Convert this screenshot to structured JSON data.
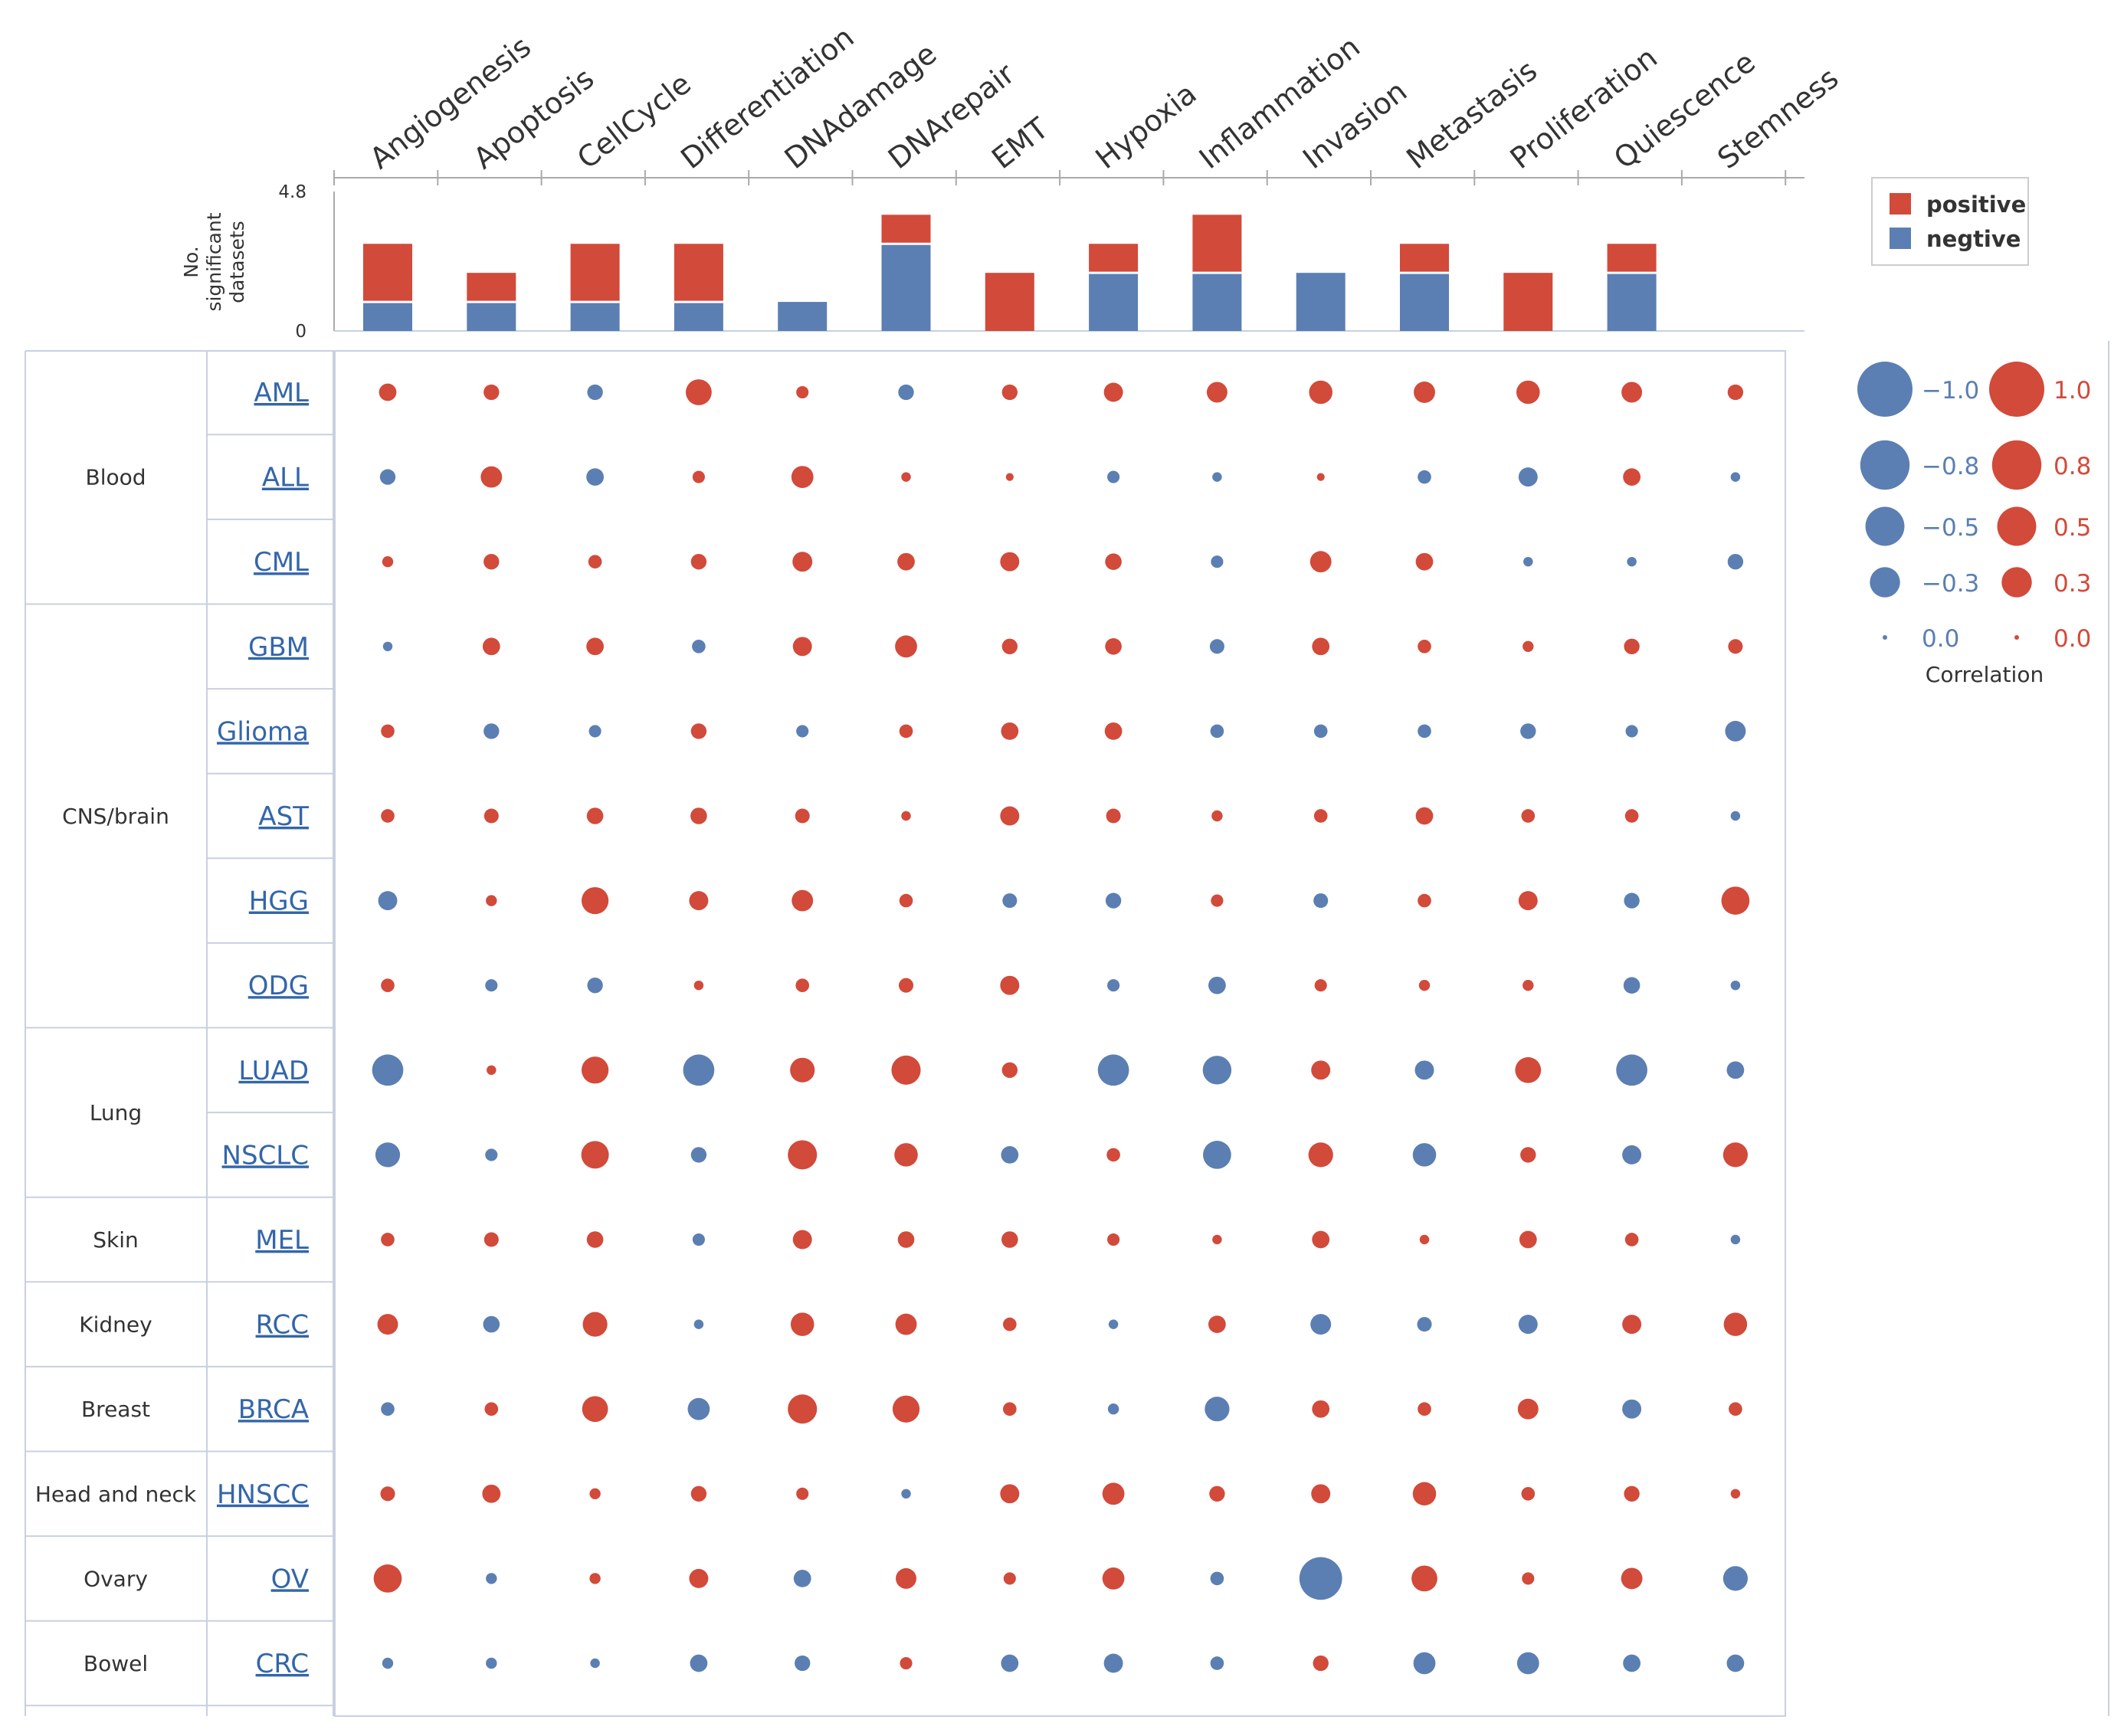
{
  "colors": {
    "positive": "#d24a3a",
    "negative": "#5b7fb2",
    "grid": "#c8d0e0",
    "axis": "#aaaaaa",
    "text": "#333333",
    "link": "#3366aa"
  },
  "chart_data": {
    "type": "bubble-heatmap",
    "categories": [
      "Angiogenesis",
      "Apoptosis",
      "CellCycle",
      "Differentiation",
      "DNAdamage",
      "DNArepair",
      "EMT",
      "Hypoxia",
      "Inflammation",
      "Invasion",
      "Metastasis",
      "Proliferation",
      "Quiescence",
      "Stemness"
    ],
    "bar": {
      "ylabel_line1": "No.",
      "ylabel_line2": "significant",
      "ylabel_line3": "datasets",
      "ymin_label": "0",
      "ymax_label": "4.8",
      "ylim": [
        0,
        4.8
      ],
      "series": [
        {
          "name": "positive",
          "values": [
            2,
            1,
            2,
            2,
            0,
            1,
            2,
            1,
            2,
            0,
            1,
            2,
            1,
            0
          ]
        },
        {
          "name": "negtive",
          "values": [
            1,
            1,
            1,
            1,
            1,
            3,
            0,
            2,
            2,
            2,
            2,
            0,
            2,
            0
          ]
        }
      ]
    },
    "legend": {
      "positive_label": "positive",
      "negative_label": "negtive",
      "placement": "top-right"
    },
    "size_legend": {
      "title": "Correlation",
      "negative_labels": [
        "−1.0",
        "−0.8",
        "−0.5",
        "−0.3",
        "0.0"
      ],
      "positive_labels": [
        "1.0",
        "0.8",
        "0.5",
        "0.3",
        "0.0"
      ],
      "values": [
        1.0,
        0.8,
        0.5,
        0.3,
        0.0
      ]
    },
    "groups": [
      {
        "name": "Blood",
        "rows": 3
      },
      {
        "name": "CNS/brain",
        "rows": 5
      },
      {
        "name": "Lung",
        "rows": 2
      },
      {
        "name": "Skin",
        "rows": 1
      },
      {
        "name": "Kidney",
        "rows": 1
      },
      {
        "name": "Breast",
        "rows": 1
      },
      {
        "name": "Head and neck",
        "rows": 1
      },
      {
        "name": "Ovary",
        "rows": 1
      },
      {
        "name": "Bowel",
        "rows": 1
      }
    ],
    "rows": [
      "AML",
      "ALL",
      "CML",
      "GBM",
      "Glioma",
      "AST",
      "HGG",
      "ODG",
      "LUAD",
      "NSCLC",
      "MEL",
      "RCC",
      "BRCA",
      "HNSCC",
      "OV",
      "CRC"
    ],
    "values": [
      [
        0.1,
        0.08,
        -0.08,
        0.22,
        0.05,
        -0.08,
        0.08,
        0.12,
        0.14,
        0.18,
        0.15,
        0.18,
        0.14,
        0.08
      ],
      [
        -0.08,
        0.15,
        -0.1,
        0.05,
        0.16,
        0.03,
        0.02,
        -0.05,
        -0.03,
        0.02,
        -0.06,
        -0.12,
        0.1,
        -0.03
      ],
      [
        0.04,
        0.08,
        0.06,
        0.08,
        0.13,
        0.1,
        0.12,
        0.09,
        -0.05,
        0.15,
        0.1,
        -0.03,
        -0.03,
        -0.08
      ],
      [
        -0.03,
        0.1,
        0.1,
        -0.06,
        0.12,
        0.16,
        0.08,
        0.09,
        -0.07,
        0.1,
        0.06,
        0.04,
        0.08,
        0.07
      ],
      [
        0.06,
        -0.08,
        -0.05,
        0.08,
        -0.05,
        0.06,
        0.1,
        0.1,
        -0.06,
        -0.06,
        -0.06,
        -0.08,
        -0.05,
        -0.14
      ],
      [
        0.06,
        0.07,
        0.09,
        0.09,
        0.07,
        0.03,
        0.12,
        0.07,
        0.04,
        0.06,
        0.1,
        0.06,
        0.06,
        -0.03
      ],
      [
        -0.12,
        0.04,
        0.24,
        0.12,
        0.15,
        0.06,
        -0.07,
        -0.08,
        0.05,
        -0.07,
        0.06,
        0.12,
        -0.08,
        0.26
      ],
      [
        0.06,
        -0.05,
        -0.08,
        0.03,
        0.06,
        0.07,
        0.12,
        -0.05,
        -0.1,
        0.05,
        0.04,
        0.04,
        -0.09,
        -0.03
      ],
      [
        -0.32,
        0.03,
        0.24,
        -0.32,
        0.2,
        0.28,
        0.08,
        -0.32,
        -0.27,
        0.12,
        -0.12,
        0.22,
        -0.32,
        -0.1
      ],
      [
        -0.2,
        -0.05,
        0.25,
        -0.08,
        0.28,
        0.18,
        -0.1,
        0.06,
        -0.26,
        0.2,
        -0.18,
        0.08,
        -0.12,
        0.2
      ],
      [
        0.06,
        0.07,
        0.09,
        -0.05,
        0.12,
        0.09,
        0.09,
        0.05,
        0.03,
        0.1,
        0.03,
        0.1,
        0.06,
        -0.03
      ],
      [
        0.14,
        -0.09,
        0.2,
        -0.03,
        0.18,
        0.15,
        0.06,
        -0.03,
        0.1,
        -0.14,
        -0.07,
        -0.12,
        0.12,
        0.18
      ],
      [
        -0.06,
        0.06,
        0.22,
        -0.16,
        0.28,
        0.24,
        0.06,
        -0.04,
        -0.2,
        0.1,
        0.06,
        0.14,
        -0.12,
        0.06
      ],
      [
        0.07,
        0.11,
        0.04,
        0.08,
        0.05,
        -0.03,
        0.12,
        0.16,
        0.08,
        0.12,
        0.18,
        0.06,
        0.08,
        0.03
      ],
      [
        0.26,
        -0.04,
        0.04,
        0.12,
        -0.1,
        0.14,
        0.05,
        0.16,
        -0.06,
        -0.6,
        0.22,
        0.05,
        0.15,
        -0.2
      ],
      [
        -0.04,
        -0.04,
        -0.03,
        -0.1,
        -0.08,
        0.05,
        -0.1,
        -0.12,
        -0.06,
        0.08,
        -0.16,
        -0.16,
        -0.1,
        -0.1
      ]
    ]
  }
}
